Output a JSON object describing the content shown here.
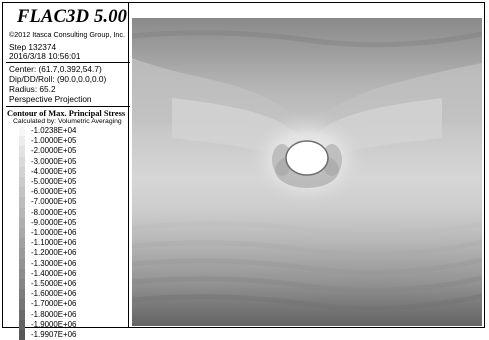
{
  "header": {
    "title": "FLAC3D 5.00",
    "copyright": "©2012 Itasca Consulting Group, Inc.",
    "step": "Step 132374",
    "datetime": "2016/3/18 10:56:01"
  },
  "view": {
    "center": "Center: (61.7,0.392,54.7)",
    "dip": "Dip/DD/Roll: (90.0,0.0,0.0)",
    "radius": "Radius: 65.2",
    "projection": "Perspective Projection"
  },
  "legend": {
    "title": "Contour of Max. Principal Stress",
    "subtitle": "Calculated by: Volumetric Averaging",
    "items": [
      {
        "label": "-1.0238E+04",
        "color": "#f7f7f7"
      },
      {
        "label": "-1.0000E+05",
        "color": "#ececec"
      },
      {
        "label": "-2.0000E+05",
        "color": "#e2e2e2"
      },
      {
        "label": "-3.0000E+05",
        "color": "#d9d9d9"
      },
      {
        "label": "-4.0000E+05",
        "color": "#d2d2d2"
      },
      {
        "label": "-5.0000E+05",
        "color": "#cbcbcb"
      },
      {
        "label": "-6.0000E+05",
        "color": "#c4c4c4"
      },
      {
        "label": "-7.0000E+05",
        "color": "#bdbdbd"
      },
      {
        "label": "-8.0000E+05",
        "color": "#b6b6b6"
      },
      {
        "label": "-9.0000E+05",
        "color": "#afafaf"
      },
      {
        "label": "-1.0000E+06",
        "color": "#a8a8a8"
      },
      {
        "label": "-1.1000E+06",
        "color": "#a1a1a1"
      },
      {
        "label": "-1.2000E+06",
        "color": "#9a9a9a"
      },
      {
        "label": "-1.3000E+06",
        "color": "#939393"
      },
      {
        "label": "-1.4000E+06",
        "color": "#8c8c8c"
      },
      {
        "label": "-1.5000E+06",
        "color": "#858585"
      },
      {
        "label": "-1.6000E+06",
        "color": "#7d7d7d"
      },
      {
        "label": "-1.7000E+06",
        "color": "#757575"
      },
      {
        "label": "-1.8000E+06",
        "color": "#6c6c6c"
      },
      {
        "label": "-1.9000E+06",
        "color": "#626262"
      },
      {
        "label": "-1.9907E+06",
        "color": "#585858"
      }
    ]
  }
}
